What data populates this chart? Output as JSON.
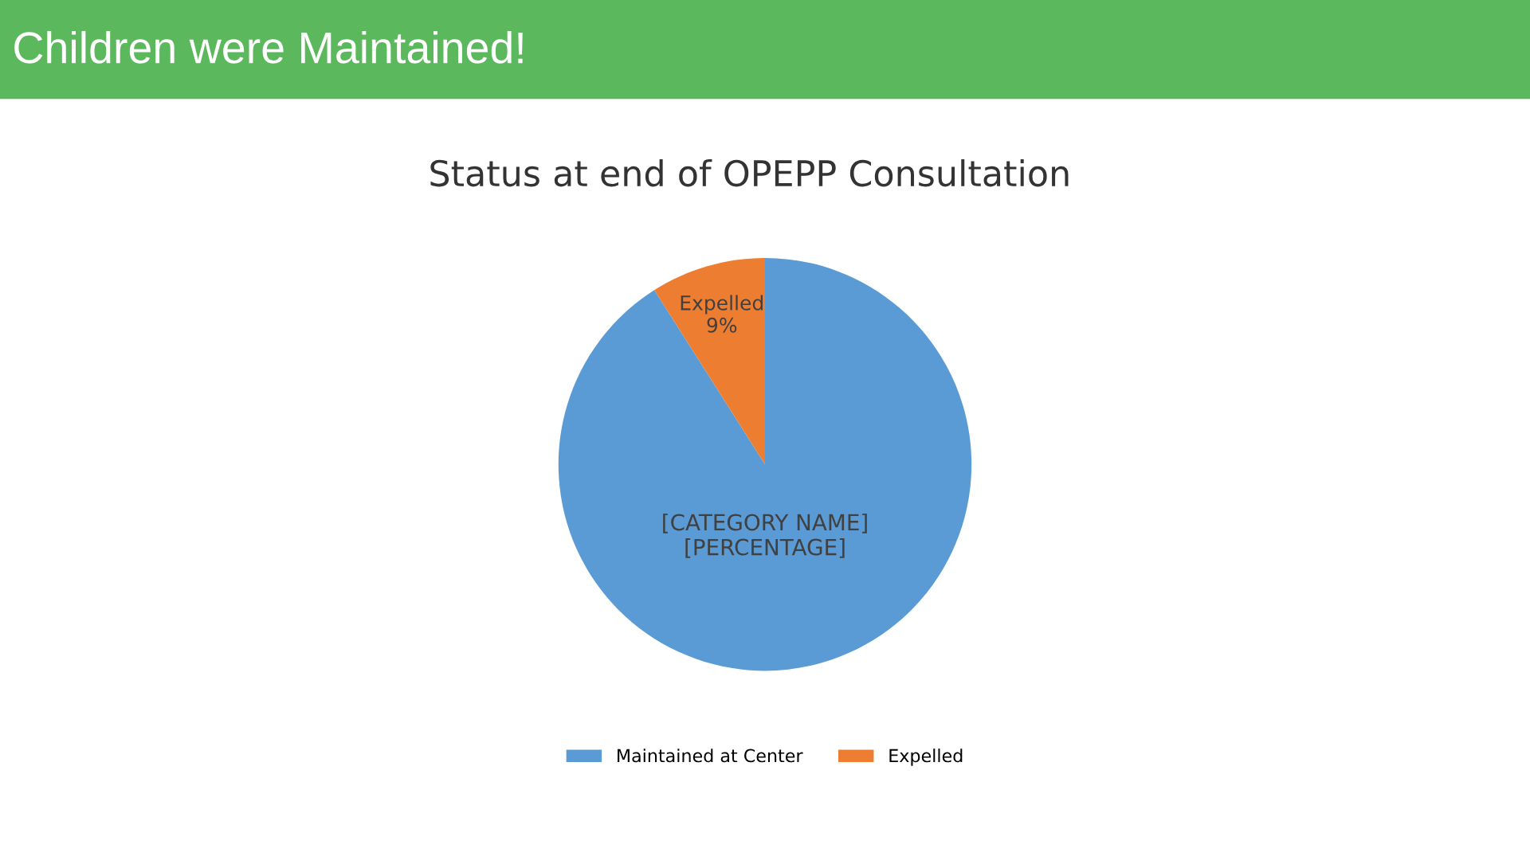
{
  "chart_data": {
    "type": "pie",
    "title": "Status at end of OPEPP Consultation",
    "categories": [
      "Maintained at Center",
      "Expelled"
    ],
    "values": [
      91,
      9
    ],
    "colors": [
      "#5b9bd5",
      "#ed7d31"
    ],
    "value_labels": [
      "[CATEGORY NAME]\n[PERCENTAGE]",
      "Expelled\n9%"
    ],
    "legend": "bottom",
    "annotations": [
      "Children were Maintained!"
    ]
  }
}
